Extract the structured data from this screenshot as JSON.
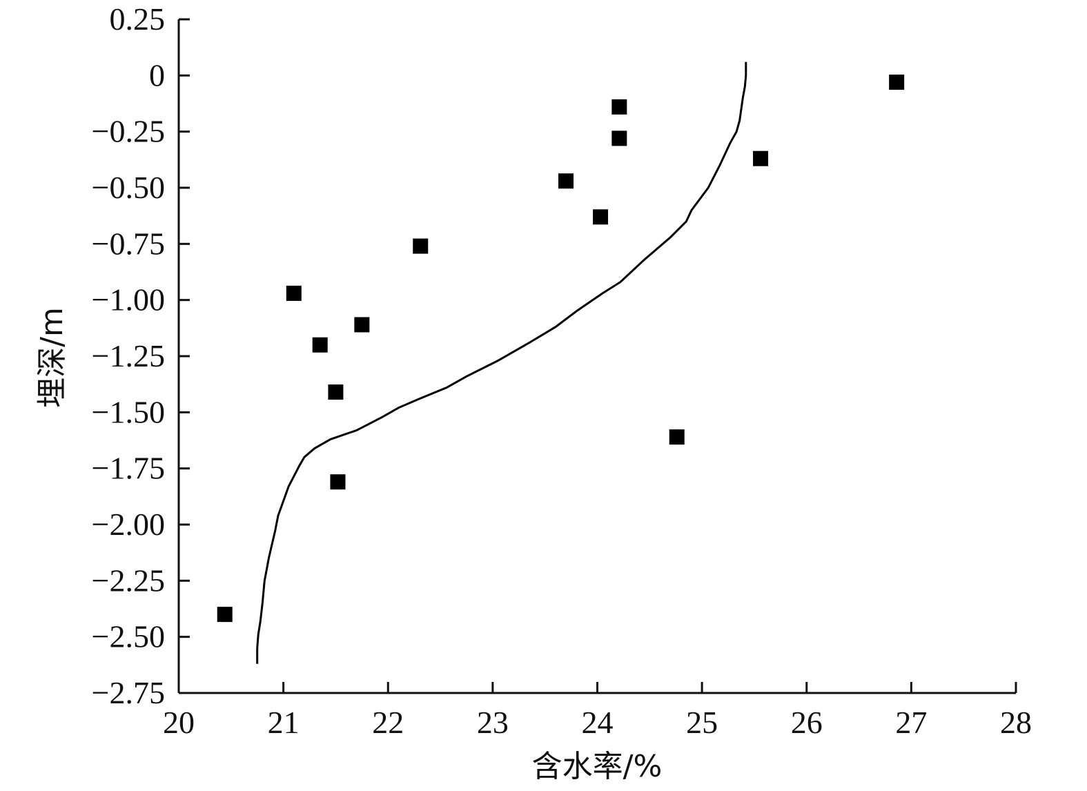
{
  "chart_data": {
    "type": "scatter",
    "xlabel": "含水率/%",
    "ylabel": "埋深/m",
    "xlim": [
      20,
      28
    ],
    "ylim": [
      -2.75,
      0.25
    ],
    "x_ticks": [
      20,
      21,
      22,
      23,
      24,
      25,
      26,
      27,
      28
    ],
    "x_tick_labels": [
      "20",
      "21",
      "22",
      "23",
      "24",
      "25",
      "26",
      "27",
      "28"
    ],
    "y_ticks": [
      0.25,
      0,
      -0.25,
      -0.5,
      -0.75,
      -1.0,
      -1.25,
      -1.5,
      -1.75,
      -2.0,
      -2.25,
      -2.5,
      -2.75
    ],
    "y_tick_labels": [
      "0.25",
      "0",
      "−0.25",
      "−0.50",
      "−0.75",
      "−1.00",
      "−1.25",
      "−1.50",
      "−1.75",
      "−2.00",
      "−2.25",
      "−2.50",
      "−2.75"
    ],
    "grid": false,
    "series": [
      {
        "type": "scatter",
        "marker": "square",
        "color": "#000000",
        "points": [
          {
            "x": 26.86,
            "y": -0.03
          },
          {
            "x": 24.21,
            "y": -0.14
          },
          {
            "x": 24.21,
            "y": -0.28
          },
          {
            "x": 25.56,
            "y": -0.37
          },
          {
            "x": 23.7,
            "y": -0.47
          },
          {
            "x": 24.03,
            "y": -0.63
          },
          {
            "x": 22.31,
            "y": -0.76
          },
          {
            "x": 21.1,
            "y": -0.97
          },
          {
            "x": 21.75,
            "y": -1.11
          },
          {
            "x": 21.35,
            "y": -1.2
          },
          {
            "x": 21.5,
            "y": -1.41
          },
          {
            "x": 24.76,
            "y": -1.61
          },
          {
            "x": 21.52,
            "y": -1.81
          },
          {
            "x": 20.44,
            "y": -2.4
          }
        ]
      },
      {
        "type": "line",
        "color": "#000000",
        "points": [
          {
            "x": 25.42,
            "y": 0.06
          },
          {
            "x": 25.42,
            "y": 0.0
          },
          {
            "x": 25.41,
            "y": -0.05
          },
          {
            "x": 25.39,
            "y": -0.1
          },
          {
            "x": 25.36,
            "y": -0.2
          },
          {
            "x": 25.33,
            "y": -0.25
          },
          {
            "x": 25.27,
            "y": -0.3
          },
          {
            "x": 25.17,
            "y": -0.4
          },
          {
            "x": 25.06,
            "y": -0.5
          },
          {
            "x": 24.9,
            "y": -0.6
          },
          {
            "x": 24.85,
            "y": -0.65
          },
          {
            "x": 24.7,
            "y": -0.72
          },
          {
            "x": 24.45,
            "y": -0.82
          },
          {
            "x": 24.22,
            "y": -0.92
          },
          {
            "x": 24.05,
            "y": -0.97
          },
          {
            "x": 23.8,
            "y": -1.05
          },
          {
            "x": 23.6,
            "y": -1.12
          },
          {
            "x": 23.35,
            "y": -1.19
          },
          {
            "x": 23.05,
            "y": -1.27
          },
          {
            "x": 22.75,
            "y": -1.34
          },
          {
            "x": 22.56,
            "y": -1.39
          },
          {
            "x": 22.3,
            "y": -1.44
          },
          {
            "x": 22.1,
            "y": -1.48
          },
          {
            "x": 21.95,
            "y": -1.52
          },
          {
            "x": 21.7,
            "y": -1.58
          },
          {
            "x": 21.45,
            "y": -1.62
          },
          {
            "x": 21.3,
            "y": -1.66
          },
          {
            "x": 21.2,
            "y": -1.7
          },
          {
            "x": 21.15,
            "y": -1.74
          },
          {
            "x": 21.05,
            "y": -1.83
          },
          {
            "x": 20.95,
            "y": -1.96
          },
          {
            "x": 20.92,
            "y": -2.03
          },
          {
            "x": 20.88,
            "y": -2.11
          },
          {
            "x": 20.86,
            "y": -2.15
          },
          {
            "x": 20.84,
            "y": -2.2
          },
          {
            "x": 20.82,
            "y": -2.25
          },
          {
            "x": 20.8,
            "y": -2.35
          },
          {
            "x": 20.78,
            "y": -2.43
          },
          {
            "x": 20.76,
            "y": -2.49
          },
          {
            "x": 20.75,
            "y": -2.55
          },
          {
            "x": 20.75,
            "y": -2.62
          }
        ]
      }
    ]
  }
}
